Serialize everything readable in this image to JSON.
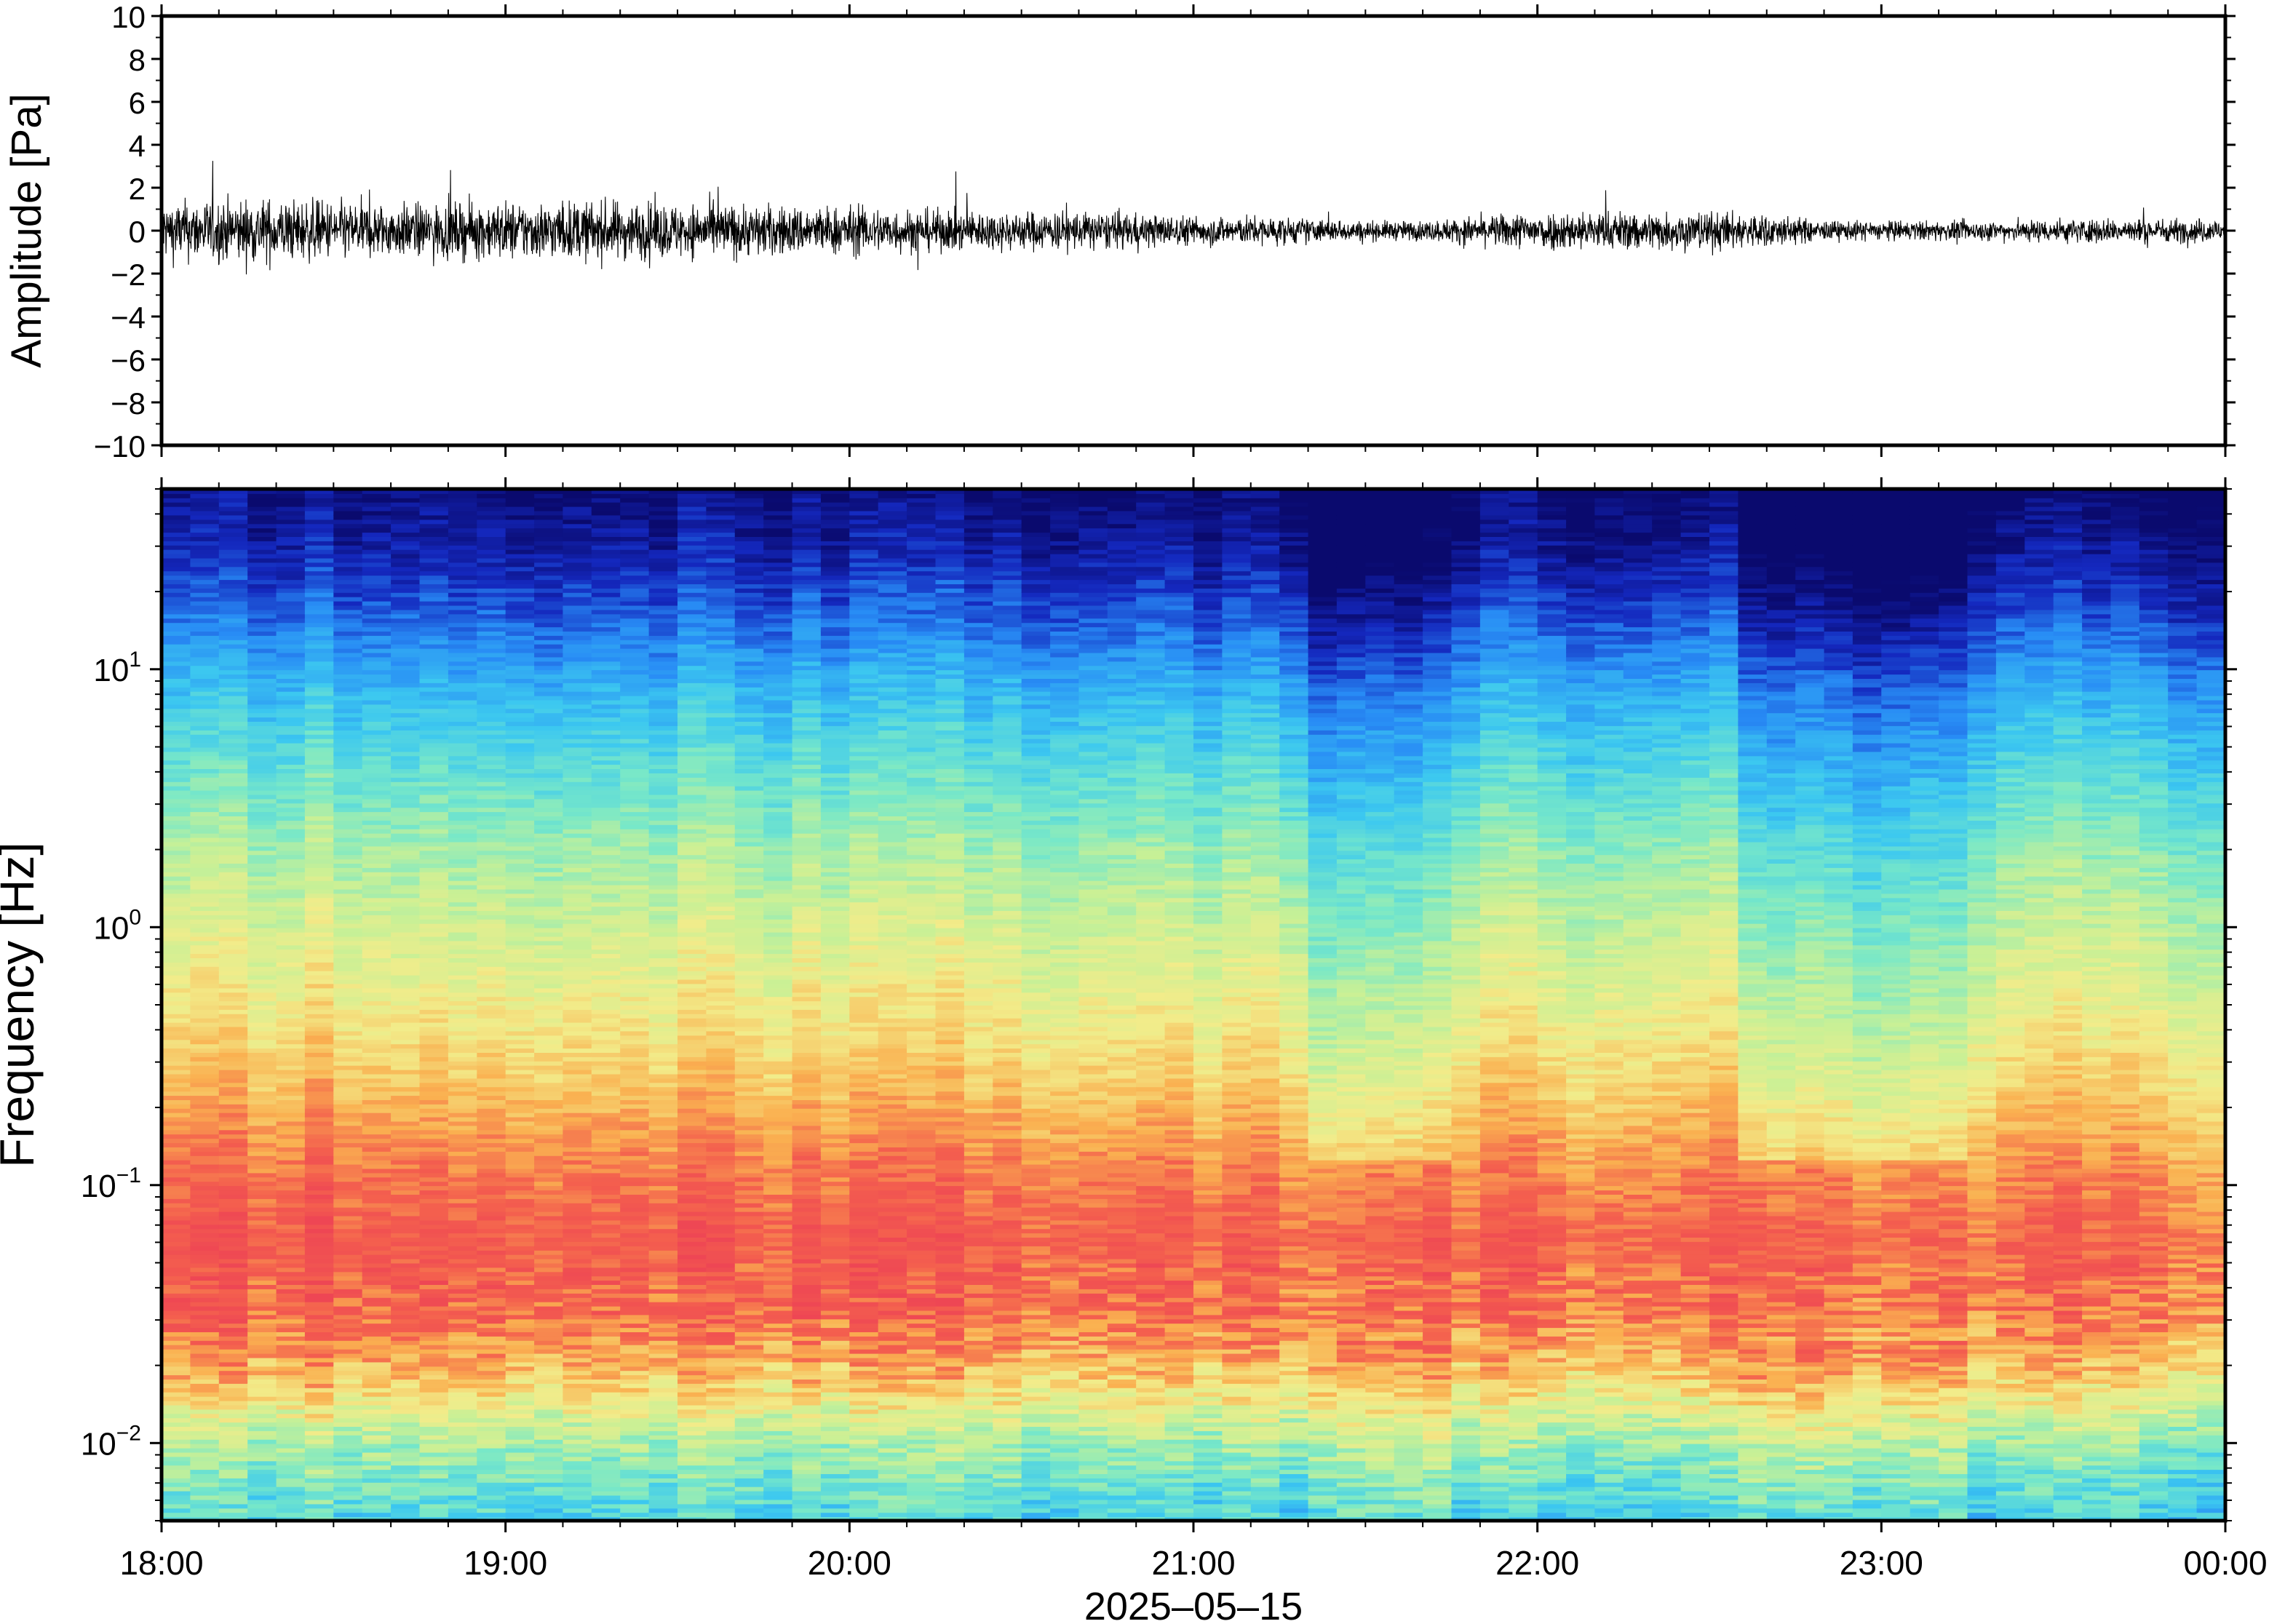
{
  "chart_data": [
    {
      "type": "line",
      "panel": "waveform",
      "title": "",
      "xlabel": "",
      "ylabel": "Amplitude [Pa]",
      "ylim": [
        -10,
        10
      ],
      "yticks": [
        -10,
        -8,
        -6,
        -4,
        -2,
        0,
        2,
        4,
        6,
        8,
        10
      ],
      "ytick_labels": [
        "−10",
        "−8",
        "−6",
        "−4",
        "−2",
        "0",
        "2",
        "4",
        "6",
        "8",
        "10"
      ],
      "xlim": [
        "2025-05-15T18:00",
        "2025-05-16T00:00"
      ],
      "series": [
        {
          "color": "#000000",
          "envelope_times": [
            "18:00",
            "18:10",
            "18:20",
            "18:30",
            "18:40",
            "18:50",
            "19:00",
            "19:10",
            "19:20",
            "19:30",
            "19:40",
            "19:50",
            "20:00",
            "20:10",
            "20:20",
            "20:30",
            "20:40",
            "20:50",
            "21:00",
            "21:10",
            "21:20",
            "21:30",
            "21:40",
            "21:50",
            "22:00",
            "22:10",
            "22:20",
            "22:30",
            "22:40",
            "22:50",
            "23:00",
            "23:10",
            "23:20",
            "23:30",
            "23:40",
            "23:50",
            "00:00"
          ],
          "envelope_amplitude": [
            1.2,
            1.3,
            1.3,
            1.2,
            1.1,
            1.1,
            1.2,
            1.2,
            1.2,
            1.1,
            1.1,
            1.0,
            1.0,
            0.9,
            0.8,
            0.8,
            0.8,
            0.7,
            0.6,
            0.6,
            0.5,
            0.4,
            0.4,
            0.6,
            0.8,
            0.8,
            0.8,
            0.8,
            0.7,
            0.4,
            0.4,
            0.4,
            0.4,
            0.5,
            0.5,
            0.5,
            0.5
          ]
        }
      ]
    },
    {
      "type": "heatmap",
      "panel": "spectrogram",
      "title": "",
      "xlabel": "2025–05–15",
      "ylabel": "Frequency [Hz]",
      "yscale": "log",
      "ylim": [
        0.005,
        50
      ],
      "yticks": [
        0.01,
        0.1,
        1,
        10
      ],
      "ytick_labels": [
        {
          "base": "10",
          "exp": "−2"
        },
        {
          "base": "10",
          "exp": "−1"
        },
        {
          "base": "10",
          "exp": "0"
        },
        {
          "base": "10",
          "exp": "1"
        }
      ],
      "x_ticks": [
        "18:00",
        "19:00",
        "20:00",
        "21:00",
        "22:00",
        "23:00",
        "00:00"
      ],
      "xlim": [
        "2025-05-15T18:00",
        "2025-05-16T00:00"
      ],
      "colormap": "rainbow",
      "colors": {
        "low": "#0a0a78",
        "mid_low": "#2ab0ff",
        "mid": "#7de8c8",
        "mid_high": "#f2ec8a",
        "high": "#f04c52"
      },
      "time_blocks": 72,
      "quiet_periods": [
        [
          "21:25",
          "21:40"
        ],
        [
          "22:40",
          "23:10"
        ]
      ]
    }
  ]
}
